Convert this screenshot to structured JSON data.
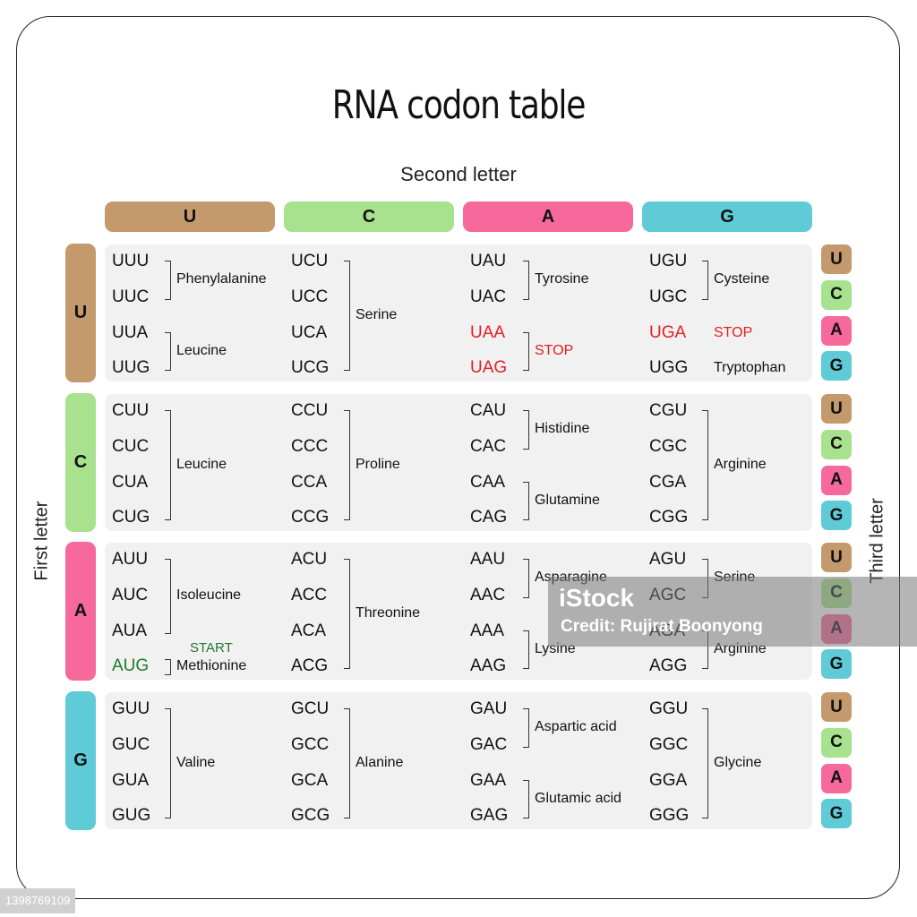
{
  "title": "RNA codon table",
  "axes": {
    "second": "Second letter",
    "first": "First letter",
    "third": "Third letter"
  },
  "bases": [
    "U",
    "C",
    "A",
    "G"
  ],
  "colors": {
    "U": "#c49a6c",
    "C": "#a8e28e",
    "A": "#f7699b",
    "G": "#5ecbd6",
    "stop": "#e31e24",
    "start": "#1e7a2e"
  },
  "rows": [
    {
      "label": "U",
      "cells": [
        {
          "codons": [
            "UUU",
            "UUC",
            "UUA",
            "UUG"
          ],
          "codon_colors": [
            "",
            "",
            "",
            ""
          ],
          "groups": [
            {
              "label": "Phenylalanine",
              "span": [
                0,
                1
              ]
            },
            {
              "label": "Leucine",
              "span": [
                2,
                3
              ]
            }
          ]
        },
        {
          "codons": [
            "UCU",
            "UCC",
            "UCA",
            "UCG"
          ],
          "codon_colors": [
            "",
            "",
            "",
            ""
          ],
          "groups": [
            {
              "label": "Serine",
              "span": [
                0,
                3
              ]
            }
          ]
        },
        {
          "codons": [
            "UAU",
            "UAC",
            "UAA",
            "UAG"
          ],
          "codon_colors": [
            "",
            "",
            "stop",
            "stop"
          ],
          "groups": [
            {
              "label": "Tyrosine",
              "span": [
                0,
                1
              ]
            },
            {
              "label": "STOP",
              "span": [
                2,
                3
              ],
              "color": "stop"
            }
          ]
        },
        {
          "codons": [
            "UGU",
            "UGC",
            "UGA",
            "UGG"
          ],
          "codon_colors": [
            "",
            "",
            "stop",
            ""
          ],
          "groups": [
            {
              "label": "Cysteine",
              "span": [
                0,
                1
              ]
            },
            {
              "label": "STOP",
              "span": [
                2,
                2
              ],
              "color": "stop",
              "nobracket": true
            },
            {
              "label": "Tryptophan",
              "span": [
                3,
                3
              ],
              "nobracket": true
            }
          ]
        }
      ]
    },
    {
      "label": "C",
      "cells": [
        {
          "codons": [
            "CUU",
            "CUC",
            "CUA",
            "CUG"
          ],
          "codon_colors": [
            "",
            "",
            "",
            ""
          ],
          "groups": [
            {
              "label": "Leucine",
              "span": [
                0,
                3
              ]
            }
          ]
        },
        {
          "codons": [
            "CCU",
            "CCC",
            "CCA",
            "CCG"
          ],
          "codon_colors": [
            "",
            "",
            "",
            ""
          ],
          "groups": [
            {
              "label": "Proline",
              "span": [
                0,
                3
              ]
            }
          ]
        },
        {
          "codons": [
            "CAU",
            "CAC",
            "CAA",
            "CAG"
          ],
          "codon_colors": [
            "",
            "",
            "",
            ""
          ],
          "groups": [
            {
              "label": "Histidine",
              "span": [
                0,
                1
              ]
            },
            {
              "label": "Glutamine",
              "span": [
                2,
                3
              ]
            }
          ]
        },
        {
          "codons": [
            "CGU",
            "CGC",
            "CGA",
            "CGG"
          ],
          "codon_colors": [
            "",
            "",
            "",
            ""
          ],
          "groups": [
            {
              "label": "Arginine",
              "span": [
                0,
                3
              ]
            }
          ]
        }
      ]
    },
    {
      "label": "A",
      "cells": [
        {
          "codons": [
            "AUU",
            "AUC",
            "AUA",
            "AUG"
          ],
          "codon_colors": [
            "",
            "",
            "",
            "start"
          ],
          "groups": [
            {
              "label": "Isoleucine",
              "span": [
                0,
                2
              ]
            },
            {
              "label": "Methionine",
              "span": [
                3,
                3
              ],
              "note": "START"
            }
          ]
        },
        {
          "codons": [
            "ACU",
            "ACC",
            "ACA",
            "ACG"
          ],
          "codon_colors": [
            "",
            "",
            "",
            ""
          ],
          "groups": [
            {
              "label": "Threonine",
              "span": [
                0,
                3
              ]
            }
          ]
        },
        {
          "codons": [
            "AAU",
            "AAC",
            "AAA",
            "AAG"
          ],
          "codon_colors": [
            "",
            "",
            "",
            ""
          ],
          "groups": [
            {
              "label": "Asparagine",
              "span": [
                0,
                1
              ]
            },
            {
              "label": "Lysine",
              "span": [
                2,
                3
              ]
            }
          ]
        },
        {
          "codons": [
            "AGU",
            "AGC",
            "AGA",
            "AGG"
          ],
          "codon_colors": [
            "",
            "",
            "",
            ""
          ],
          "groups": [
            {
              "label": "Serine",
              "span": [
                0,
                1
              ]
            },
            {
              "label": "Arginine",
              "span": [
                2,
                3
              ]
            }
          ]
        }
      ]
    },
    {
      "label": "G",
      "cells": [
        {
          "codons": [
            "GUU",
            "GUC",
            "GUA",
            "GUG"
          ],
          "codon_colors": [
            "",
            "",
            "",
            ""
          ],
          "groups": [
            {
              "label": "Valine",
              "span": [
                0,
                3
              ]
            }
          ]
        },
        {
          "codons": [
            "GCU",
            "GCC",
            "GCA",
            "GCG"
          ],
          "codon_colors": [
            "",
            "",
            "",
            ""
          ],
          "groups": [
            {
              "label": "Alanine",
              "span": [
                0,
                3
              ]
            }
          ]
        },
        {
          "codons": [
            "GAU",
            "GAC",
            "GAA",
            "GAG"
          ],
          "codon_colors": [
            "",
            "",
            "",
            ""
          ],
          "groups": [
            {
              "label": "Aspartic acid",
              "span": [
                0,
                1
              ]
            },
            {
              "label": "Glutamic acid",
              "span": [
                2,
                3
              ]
            }
          ]
        },
        {
          "codons": [
            "GGU",
            "GGC",
            "GGA",
            "GGG"
          ],
          "codon_colors": [
            "",
            "",
            "",
            ""
          ],
          "groups": [
            {
              "label": "Glycine",
              "span": [
                0,
                3
              ]
            }
          ]
        }
      ]
    }
  ],
  "watermark": {
    "logo": "iStock",
    "credit": "Credit: Rujirat Boonyong",
    "image_id": "1398769109"
  }
}
